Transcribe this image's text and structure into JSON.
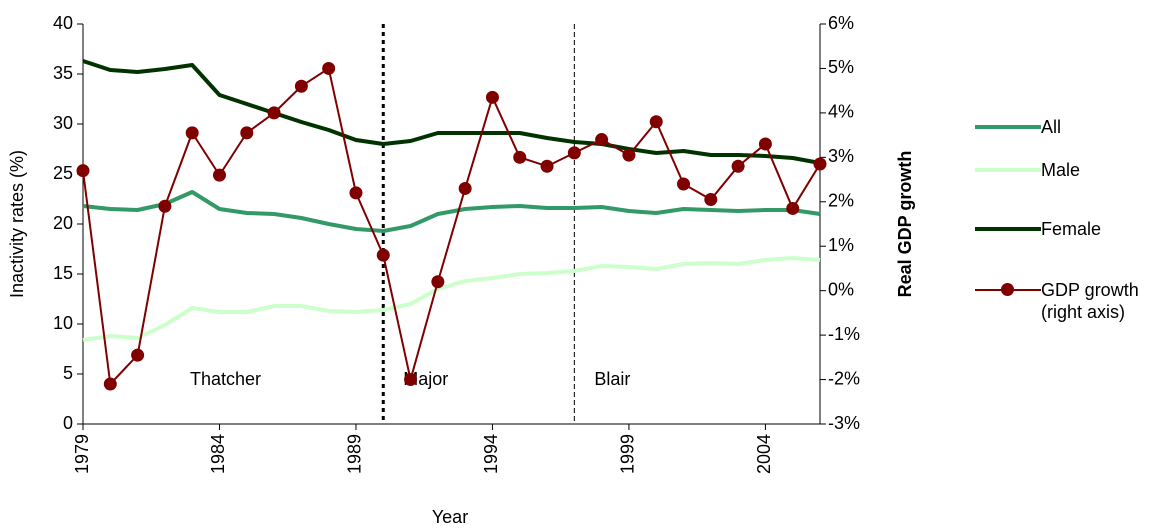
{
  "chart_data": {
    "type": "line",
    "x_label": "Year",
    "y_label": "Inactivity rates (%)",
    "y2_label": "Real GDP growth",
    "x": [
      1979,
      1980,
      1981,
      1982,
      1983,
      1984,
      1985,
      1986,
      1987,
      1988,
      1989,
      1990,
      1991,
      1992,
      1993,
      1994,
      1995,
      1996,
      1997,
      1998,
      1999,
      2000,
      2001,
      2002,
      2003,
      2004,
      2005,
      2006
    ],
    "xlim": [
      1979,
      2006
    ],
    "xticks": [
      1979,
      1984,
      1989,
      1994,
      1999,
      2004
    ],
    "ylim": [
      0,
      40
    ],
    "yticks": [
      0,
      5,
      10,
      15,
      20,
      25,
      30,
      35,
      40
    ],
    "y2lim": [
      -3,
      6
    ],
    "y2ticks": [
      {
        "value": -3,
        "label": "-3%"
      },
      {
        "value": -2,
        "label": "-2%"
      },
      {
        "value": -1,
        "label": "-1%"
      },
      {
        "value": 0,
        "label": "0%"
      },
      {
        "value": 1,
        "label": "1%"
      },
      {
        "value": 2,
        "label": "2%"
      },
      {
        "value": 3,
        "label": "3%"
      },
      {
        "value": 4,
        "label": "4%"
      },
      {
        "value": 5,
        "label": "5%"
      },
      {
        "value": 6,
        "label": "6%"
      }
    ],
    "series": [
      {
        "name": "All",
        "color": "#339966",
        "values": [
          21.8,
          21.5,
          21.4,
          22,
          23.2,
          21.5,
          21.1,
          21,
          20.6,
          20,
          19.5,
          19.3,
          19.8,
          21,
          21.5,
          21.7,
          21.8,
          21.6,
          21.6,
          21.7,
          21.3,
          21.1,
          21.5,
          21.4,
          21.3,
          21.4,
          21.4,
          21.0
        ]
      },
      {
        "name": "Male",
        "color": "#ccffcc",
        "values": [
          8.4,
          8.8,
          8.6,
          9.9,
          11.6,
          11.2,
          11.2,
          11.8,
          11.8,
          11.3,
          11.2,
          11.4,
          12,
          13.5,
          14.3,
          14.6,
          15,
          15.1,
          15.3,
          15.8,
          15.7,
          15.5,
          16,
          16.1,
          16,
          16.4,
          16.6,
          16.4
        ]
      },
      {
        "name": "Female",
        "color": "#003300",
        "values": [
          36.3,
          35.4,
          35.2,
          35.5,
          35.9,
          32.9,
          32,
          31.1,
          30.2,
          29.4,
          28.4,
          28,
          28.3,
          29.1,
          29.1,
          29.1,
          29.1,
          28.6,
          28.2,
          28,
          27.5,
          27.1,
          27.3,
          26.9,
          26.9,
          26.8,
          26.6,
          26.1
        ]
      },
      {
        "name": "GDP growth (right axis)",
        "color": "#800000",
        "axis": "y2",
        "markers": true,
        "values": [
          2.7,
          -2.1,
          -1.45,
          1.9,
          3.55,
          2.6,
          3.55,
          4.0,
          4.6,
          5.0,
          2.2,
          0.8,
          -2.0,
          0.2,
          2.3,
          4.35,
          3.0,
          2.8,
          3.1,
          3.4,
          3.05,
          3.8,
          2.4,
          2.05,
          2.8,
          3.3,
          1.85,
          2.85
        ]
      }
    ],
    "periods": [
      {
        "label": "Thatcher",
        "start": 1979
      },
      {
        "label": "Major",
        "start": 1990
      },
      {
        "label": "Blair",
        "start": 1997
      }
    ]
  }
}
